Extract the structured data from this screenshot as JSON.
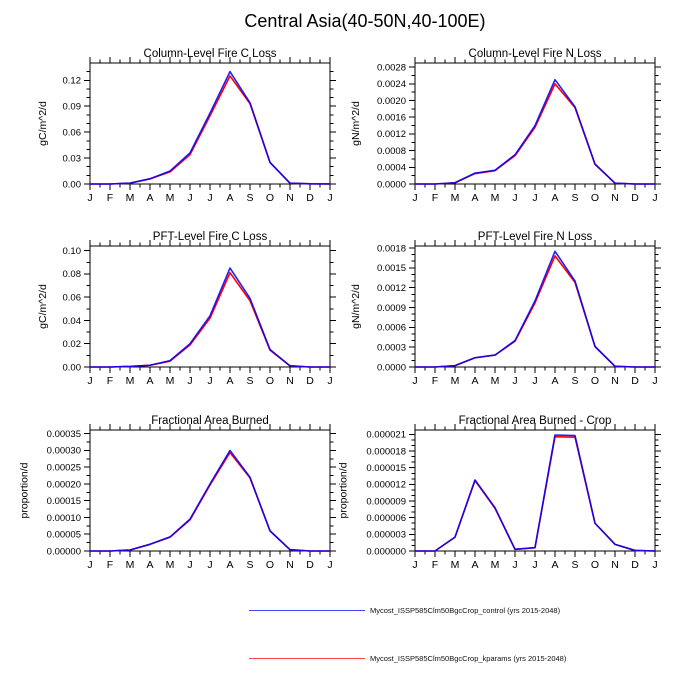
{
  "page_title": "Central Asia(40-50N,40-100E)",
  "chart_data": [
    {
      "type": "line",
      "title": "Column-Level Fire C Loss",
      "ylabel": "gC/m^2/d",
      "xlabel": "",
      "categories": [
        "J",
        "F",
        "M",
        "A",
        "M",
        "J",
        "J",
        "A",
        "S",
        "O",
        "N",
        "D",
        "J"
      ],
      "ylim": [
        0,
        0.14
      ],
      "ytick_step": 0.03,
      "yminor_step": 0.01,
      "yticks": [
        0,
        0.03,
        0.06,
        0.09,
        0.12
      ],
      "ytick_labels": [
        "0.00",
        "0.03",
        "0.06",
        "0.09",
        "0.12"
      ],
      "grid": false,
      "series": [
        {
          "name": "Mycost_ISSP585Clm50BgcCrop_control",
          "color": "#0000ff",
          "values": [
            0,
            0,
            0.001,
            0.006,
            0.015,
            0.036,
            0.082,
            0.13,
            0.094,
            0.025,
            0.001,
            0.0002,
            0.0001
          ]
        },
        {
          "name": "Mycost_ISSP585Clm50BgcCrop_kparams",
          "color": "#ff0000",
          "values": [
            0,
            0,
            0.001,
            0.006,
            0.014,
            0.034,
            0.079,
            0.125,
            0.093,
            0.025,
            0.001,
            0.0002,
            0.0001
          ]
        }
      ]
    },
    {
      "type": "line",
      "title": "Column-Level Fire N Loss",
      "ylabel": "gN/m^2/d",
      "xlabel": "",
      "categories": [
        "J",
        "F",
        "M",
        "A",
        "M",
        "J",
        "J",
        "A",
        "S",
        "O",
        "N",
        "D",
        "J"
      ],
      "ylim": [
        0,
        0.0029
      ],
      "ytick_step": 0.0004,
      "yminor_step": 0.0002,
      "yticks": [
        0,
        0.0004,
        0.0008,
        0.0012,
        0.0016,
        0.002,
        0.0024,
        0.0028
      ],
      "ytick_labels": [
        "0.0000",
        "0.0004",
        "0.0008",
        "0.0012",
        "0.0016",
        "0.0020",
        "0.0024",
        "0.0028"
      ],
      "grid": false,
      "series": [
        {
          "name": "Mycost_ISSP585Clm50BgcCrop_control",
          "color": "#0000ff",
          "values": [
            0,
            0,
            3e-05,
            0.00026,
            0.00033,
            0.0007,
            0.0014,
            0.0025,
            0.00185,
            0.00048,
            2e-05,
            0,
            0
          ]
        },
        {
          "name": "Mycost_ISSP585Clm50BgcCrop_kparams",
          "color": "#ff0000",
          "values": [
            0,
            0,
            3e-05,
            0.00025,
            0.00032,
            0.00068,
            0.00136,
            0.0024,
            0.00183,
            0.00047,
            2e-05,
            0,
            0
          ]
        }
      ]
    },
    {
      "type": "line",
      "title": "PFT-Level Fire C Loss",
      "ylabel": "gC/m^2/d",
      "xlabel": "",
      "categories": [
        "J",
        "F",
        "M",
        "A",
        "M",
        "J",
        "J",
        "A",
        "S",
        "O",
        "N",
        "D",
        "J"
      ],
      "ylim": [
        0,
        0.104
      ],
      "ytick_step": 0.02,
      "yminor_step": 0.01,
      "yticks": [
        0,
        0.02,
        0.04,
        0.06,
        0.08,
        0.1
      ],
      "ytick_labels": [
        "0.00",
        "0.02",
        "0.04",
        "0.06",
        "0.08",
        "0.10"
      ],
      "grid": false,
      "series": [
        {
          "name": "Mycost_ISSP585Clm50BgcCrop_control",
          "color": "#0000ff",
          "values": [
            0,
            0,
            0.0005,
            0.0015,
            0.0055,
            0.02,
            0.044,
            0.085,
            0.059,
            0.015,
            0.001,
            0,
            0
          ]
        },
        {
          "name": "Mycost_ISSP585Clm50BgcCrop_kparams",
          "color": "#ff0000",
          "values": [
            0,
            0,
            0.0005,
            0.0015,
            0.005,
            0.019,
            0.042,
            0.081,
            0.057,
            0.0145,
            0.001,
            0,
            0
          ]
        }
      ]
    },
    {
      "type": "line",
      "title": "PFT-Level Fire N Loss",
      "ylabel": "gN/m^2/d",
      "xlabel": "",
      "categories": [
        "J",
        "F",
        "M",
        "A",
        "M",
        "J",
        "J",
        "A",
        "S",
        "O",
        "N",
        "D",
        "J"
      ],
      "ylim": [
        0,
        0.00183
      ],
      "ytick_step": 0.0003,
      "yminor_step": 0.0001,
      "yticks": [
        0,
        0.0003,
        0.0006,
        0.0009,
        0.0012,
        0.0015,
        0.0018
      ],
      "ytick_labels": [
        "0.0000",
        "0.0003",
        "0.0006",
        "0.0009",
        "0.0012",
        "0.0015",
        "0.0018"
      ],
      "grid": false,
      "series": [
        {
          "name": "Mycost_ISSP585Clm50BgcCrop_control",
          "color": "#0000ff",
          "values": [
            0,
            0,
            2e-05,
            0.00014,
            0.00018,
            0.0004,
            0.001,
            0.00175,
            0.0013,
            0.00031,
            1e-05,
            0,
            0
          ]
        },
        {
          "name": "Mycost_ISSP585Clm50BgcCrop_kparams",
          "color": "#ff0000",
          "values": [
            0,
            0,
            2e-05,
            0.00014,
            0.00018,
            0.00039,
            0.00097,
            0.00168,
            0.00128,
            0.00031,
            1e-05,
            0,
            0
          ]
        }
      ]
    },
    {
      "type": "line",
      "title": "Fractional Area Burned",
      "ylabel": "proportion/d",
      "xlabel": "",
      "categories": [
        "J",
        "F",
        "M",
        "A",
        "M",
        "J",
        "J",
        "A",
        "S",
        "O",
        "N",
        "D",
        "J"
      ],
      "ylim": [
        0,
        0.000361
      ],
      "ytick_step": 5e-05,
      "yminor_step": 2.5e-05,
      "yticks": [
        0,
        5e-05,
        0.0001,
        0.00015,
        0.0002,
        0.00025,
        0.0003,
        0.00035
      ],
      "ytick_labels": [
        "0.00000",
        "0.00005",
        "0.00010",
        "0.00015",
        "0.00020",
        "0.00025",
        "0.00030",
        "0.00035"
      ],
      "grid": false,
      "series": [
        {
          "name": "Mycost_ISSP585Clm50BgcCrop_control",
          "color": "#0000ff",
          "values": [
            0,
            0,
            3e-06,
            2e-05,
            4.2e-05,
            9.5e-05,
            0.0002,
            0.0003,
            0.00022,
            6e-05,
            4e-06,
            0,
            0
          ]
        },
        {
          "name": "Mycost_ISSP585Clm50BgcCrop_kparams",
          "color": "#ff0000",
          "values": [
            0,
            0,
            3e-06,
            2e-05,
            4.1e-05,
            9.3e-05,
            0.000197,
            0.000294,
            0.000218,
            6e-05,
            4e-06,
            0,
            0
          ]
        }
      ]
    },
    {
      "type": "line",
      "title": "Fractional Area Burned - Crop",
      "ylabel": "proportion/d",
      "xlabel": "",
      "categories": [
        "J",
        "F",
        "M",
        "A",
        "M",
        "J",
        "J",
        "A",
        "S",
        "O",
        "N",
        "D",
        "J"
      ],
      "ylim": [
        0,
        2.18e-05
      ],
      "ytick_step": 3e-06,
      "yminor_step": 1e-06,
      "yticks": [
        0,
        3e-06,
        6e-06,
        9e-06,
        1.2e-05,
        1.5e-05,
        1.8e-05,
        2.1e-05
      ],
      "ytick_labels": [
        "0.000000",
        "0.000003",
        "0.000006",
        "0.000009",
        "0.000012",
        "0.000015",
        "0.000018",
        "0.000021"
      ],
      "grid": false,
      "series": [
        {
          "name": "Mycost_ISSP585Clm50BgcCrop_control",
          "color": "#0000ff",
          "values": [
            0,
            0,
            2.5e-06,
            1.28e-05,
            7.8e-06,
            3e-07,
            6e-07,
            2.09e-05,
            2.08e-05,
            5e-06,
            1.2e-06,
            1e-07,
            0
          ]
        },
        {
          "name": "Mycost_ISSP585Clm50BgcCrop_kparams",
          "color": "#ff0000",
          "values": [
            0,
            0,
            2.5e-06,
            1.27e-05,
            7.7e-06,
            3e-07,
            6e-07,
            2.06e-05,
            2.05e-05,
            5e-06,
            1.2e-06,
            1e-07,
            0
          ]
        }
      ]
    }
  ],
  "legend": {
    "position": "bottom",
    "items": [
      {
        "label": "Mycost_ISSP585Clm50BgcCrop_control (yrs 2015-2048)",
        "color": "#0000ff"
      },
      {
        "label": "Mycost_ISSP585Clm50BgcCrop_kparams (yrs 2015-2048)",
        "color": "#ff0000"
      }
    ]
  }
}
